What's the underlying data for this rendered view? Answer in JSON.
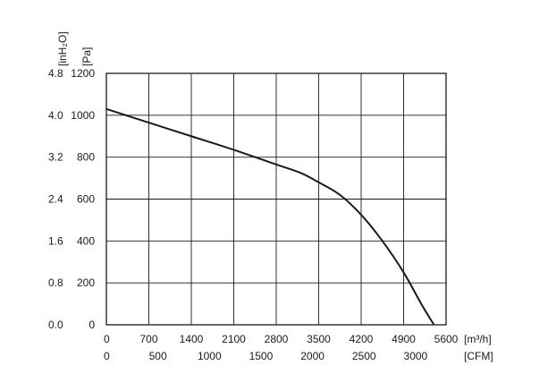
{
  "chart_data": {
    "type": "line",
    "title": "",
    "y_units": {
      "inH2O": "[inH₂O]",
      "Pa": "[Pa]"
    },
    "x_units": {
      "m3h": "[m³/h]",
      "CFM": "[CFM]"
    },
    "x_ticks_m3h": [
      "0",
      "700",
      "1400",
      "2100",
      "2800",
      "3500",
      "4200",
      "4900",
      "5600"
    ],
    "x_ticks_cfm": [
      "0",
      "500",
      "1000",
      "1500",
      "2000",
      "2500",
      "3000"
    ],
    "y_ticks_pa": [
      "0",
      "200",
      "400",
      "600",
      "800",
      "1000",
      "1200"
    ],
    "y_ticks_inh2o": [
      "0.0",
      "0.8",
      "1.6",
      "2.4",
      "3.2",
      "4.0",
      "4.8"
    ],
    "xlim_m3h": [
      0,
      5600
    ],
    "ylim_pa": [
      0,
      1200
    ],
    "grid": true,
    "series": [
      {
        "x_m3h": [
          0,
          700,
          1400,
          2100,
          2800,
          3200,
          3500,
          3850,
          4200,
          4550,
          4900,
          5200,
          5400
        ],
        "y_pa": [
          1030,
          965,
          900,
          835,
          765,
          725,
          680,
          620,
          525,
          400,
          250,
          95,
          0
        ]
      }
    ],
    "line_color": "#1a1a1a"
  }
}
